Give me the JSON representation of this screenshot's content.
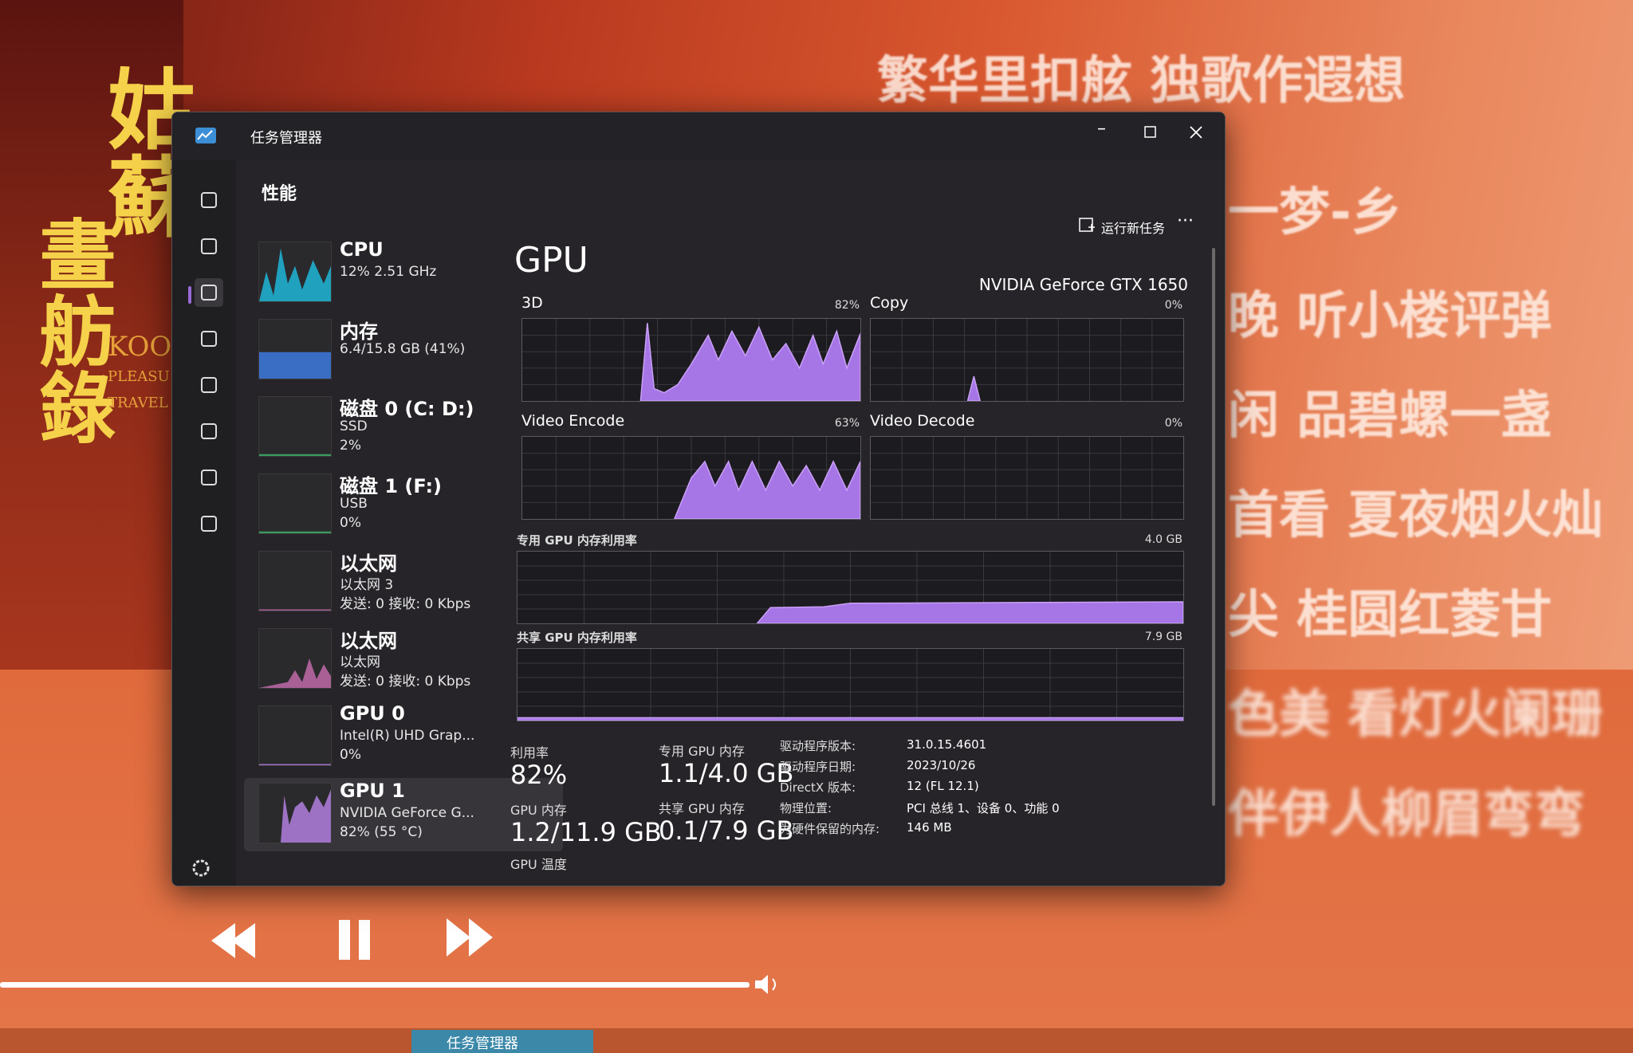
{
  "background": {
    "album_text": [
      "姑蘇",
      "畫舫錄",
      "KOO",
      "PLEASU",
      "TRAVEL"
    ],
    "lyrics": [
      "繁华里扣舷 独歌作遐想",
      "一梦-乡",
      "晚 听小楼评弹",
      "闲 品碧螺一盏",
      "首看 夏夜烟火灿",
      "尖 桂圆红菱甘",
      "色美 看灯火阑珊",
      "伴伊人柳眉弯弯"
    ]
  },
  "taskbar": {
    "app": "任务管理器"
  },
  "window": {
    "title": "任务管理器",
    "page": "性能",
    "run_new_task": "运行新任务"
  },
  "sidebar": [
    {
      "name": "CPU",
      "lines": [
        "12% 2.51 GHz"
      ]
    },
    {
      "name": "内存",
      "lines": [
        "6.4/15.8 GB (41%)"
      ]
    },
    {
      "name": "磁盘 0 (C: D:)",
      "lines": [
        "SSD",
        "2%"
      ]
    },
    {
      "name": "磁盘 1 (F:)",
      "lines": [
        "USB",
        "0%"
      ]
    },
    {
      "name": "以太网",
      "lines": [
        "以太网 3",
        "发送: 0 接收: 0 Kbps"
      ]
    },
    {
      "name": "以太网",
      "lines": [
        "以太网",
        "发送: 0 接收: 0 Kbps"
      ]
    },
    {
      "name": "GPU 0",
      "lines": [
        "Intel(R) UHD Grap...",
        "0%"
      ]
    },
    {
      "name": "GPU 1",
      "lines": [
        "NVIDIA GeForce G...",
        "82% (55 °C)"
      ]
    }
  ],
  "detail": {
    "title": "GPU",
    "device": "NVIDIA GeForce GTX 1650",
    "graphs": [
      {
        "label": "3D",
        "value": "82%"
      },
      {
        "label": "Copy",
        "value": "0%"
      },
      {
        "label": "Video Encode",
        "value": "63%"
      },
      {
        "label": "Video Decode",
        "value": "0%"
      }
    ],
    "memory_graphs": [
      {
        "label": "专用 GPU 内存利用率",
        "max": "4.0 GB"
      },
      {
        "label": "共享 GPU 内存利用率",
        "max": "7.9 GB"
      }
    ],
    "stats": [
      {
        "label": "利用率",
        "value": "82%"
      },
      {
        "label": "GPU 内存",
        "value": "1.2/11.9 GB"
      },
      {
        "label": "专用 GPU 内存",
        "value": "1.1/4.0 GB"
      },
      {
        "label": "共享 GPU 内存",
        "value": "0.1/7.9 GB"
      }
    ],
    "temp_label": "GPU 温度",
    "properties": [
      {
        "key": "驱动程序版本:",
        "value": "31.0.15.4601"
      },
      {
        "key": "驱动程序日期:",
        "value": "2023/10/26"
      },
      {
        "key": "DirectX 版本:",
        "value": "12 (FL 12.1)"
      },
      {
        "key": "物理位置:",
        "value": "PCI 总线 1、设备 0、功能 0"
      },
      {
        "key": "为硬件保留的内存:",
        "value": "146 MB"
      }
    ]
  }
}
